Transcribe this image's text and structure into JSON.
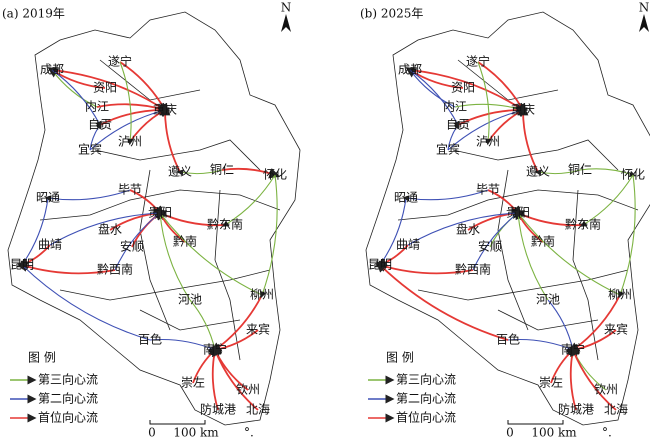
{
  "panels": [
    {
      "label": "(a) 2019年"
    },
    {
      "label": "(b) 2025年"
    }
  ],
  "cities": [
    "成都",
    "遂宁",
    "资阳",
    "内江",
    "自贡",
    "宜宾",
    "泸州",
    "重庆",
    "遵义",
    "铜仁",
    "怀化",
    "昭通",
    "毕节",
    "贵阳",
    "黔东南",
    "盘水",
    "安顺",
    "黔南",
    "曲靖",
    "昆明",
    "黔西南",
    "河池",
    "柳州",
    "来宾",
    "百色",
    "南宁",
    "崇左",
    "钦州",
    "防城港",
    "北海"
  ],
  "legend": {
    "title": "图 例",
    "items": [
      "第三向心流",
      "第二向心流",
      "首位向心流"
    ]
  },
  "scale": {
    "zero": "0",
    "distance": "100 km",
    "note": "°."
  },
  "north": "N"
}
